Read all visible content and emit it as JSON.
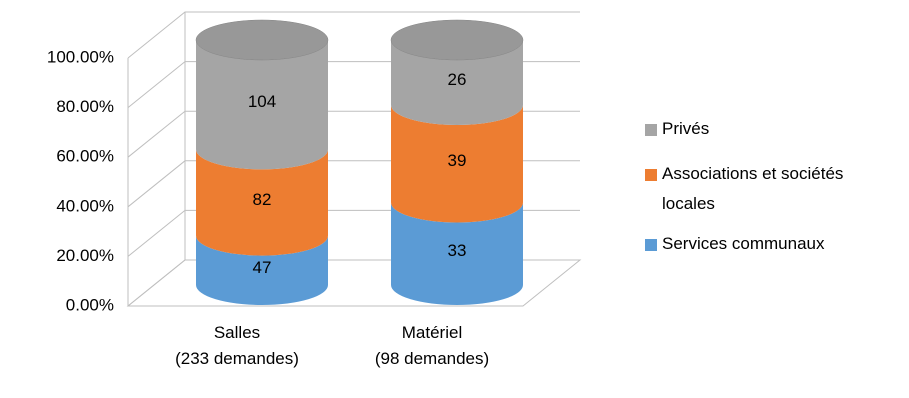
{
  "chart_data": {
    "type": "cylinder-stacked-percent",
    "categories": [
      "Salles\n(233 demandes)",
      "Matériel\n(98 demandes)"
    ],
    "series": [
      {
        "name": "Services communaux",
        "color": "#5b9bd5",
        "values": [
          47,
          33
        ]
      },
      {
        "name": "Associations et sociétés locales",
        "color": "#ed7d31",
        "values": [
          82,
          39
        ]
      },
      {
        "name": "Privés",
        "color": "#a5a5a5",
        "values": [
          104,
          26
        ]
      }
    ],
    "ylim": [
      0,
      100
    ],
    "yticks": [
      {
        "value": 0,
        "label": "0.00%"
      },
      {
        "value": 20,
        "label": "20.00%"
      },
      {
        "value": 40,
        "label": "40.00%"
      },
      {
        "value": 60,
        "label": "60.00%"
      },
      {
        "value": 80,
        "label": "80.00%"
      },
      {
        "value": 100,
        "label": "100.00%"
      }
    ],
    "grid": true,
    "legend": "right"
  }
}
